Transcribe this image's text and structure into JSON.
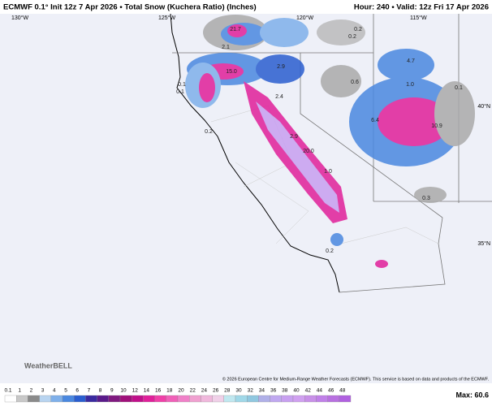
{
  "header": {
    "title": "ECMWF 0.1° Init 12z 7 Apr 2026 • Total Snow (Kuchera Ratio) (Inches)",
    "valid": "Hour: 240 • Valid: 12z Fri 17 Apr 2026"
  },
  "map": {
    "longitudes": [
      "130°W",
      "125°W",
      "120°W",
      "115°W"
    ],
    "latitudes": [
      "40°N",
      "35°N"
    ],
    "labels": [
      "21.7",
      "0.2",
      "0.2",
      "2.1",
      "4.7",
      "15.0",
      "2.9",
      "0.1",
      "0.1",
      "2.4",
      "0.6",
      "1.0",
      "0.1",
      "6.4",
      "10.9",
      "0.2",
      "2.9",
      "20.0",
      "1.0",
      "0.3",
      "0.2"
    ],
    "credit": "© 2026 European Centre for Medium-Range Weather Forecasts (ECMWF). This service is based on data and products of the ECMWF.",
    "logo": "WeatherBELL"
  },
  "legend": {
    "levels": [
      "0.1",
      "1",
      "2",
      "3",
      "4",
      "5",
      "6",
      "7",
      "8",
      "9",
      "10",
      "12",
      "14",
      "16",
      "18",
      "20",
      "22",
      "24",
      "26",
      "28",
      "30",
      "32",
      "34",
      "36",
      "38",
      "40",
      "42",
      "44",
      "46",
      "48"
    ],
    "colors": [
      "#ffffff",
      "#c8c8c8",
      "#8a8a8a",
      "#b8d4f0",
      "#7fb0ea",
      "#4a88e0",
      "#2a5ed0",
      "#3a2aa0",
      "#5a1a8a",
      "#801a80",
      "#a0107a",
      "#c0108a",
      "#e0209a",
      "#f040a8",
      "#f060b8",
      "#f080c8",
      "#f0a0d0",
      "#f0b8dc",
      "#f0d0e8",
      "#c0e8f0",
      "#a0d8e8",
      "#90c8e0",
      "#b0b0e8",
      "#c0a8f0",
      "#c8a0f0",
      "#d0a0f0",
      "#c890e8",
      "#c080e8",
      "#b870e0",
      "#b060e0"
    ],
    "max": "Max: 60.6"
  }
}
